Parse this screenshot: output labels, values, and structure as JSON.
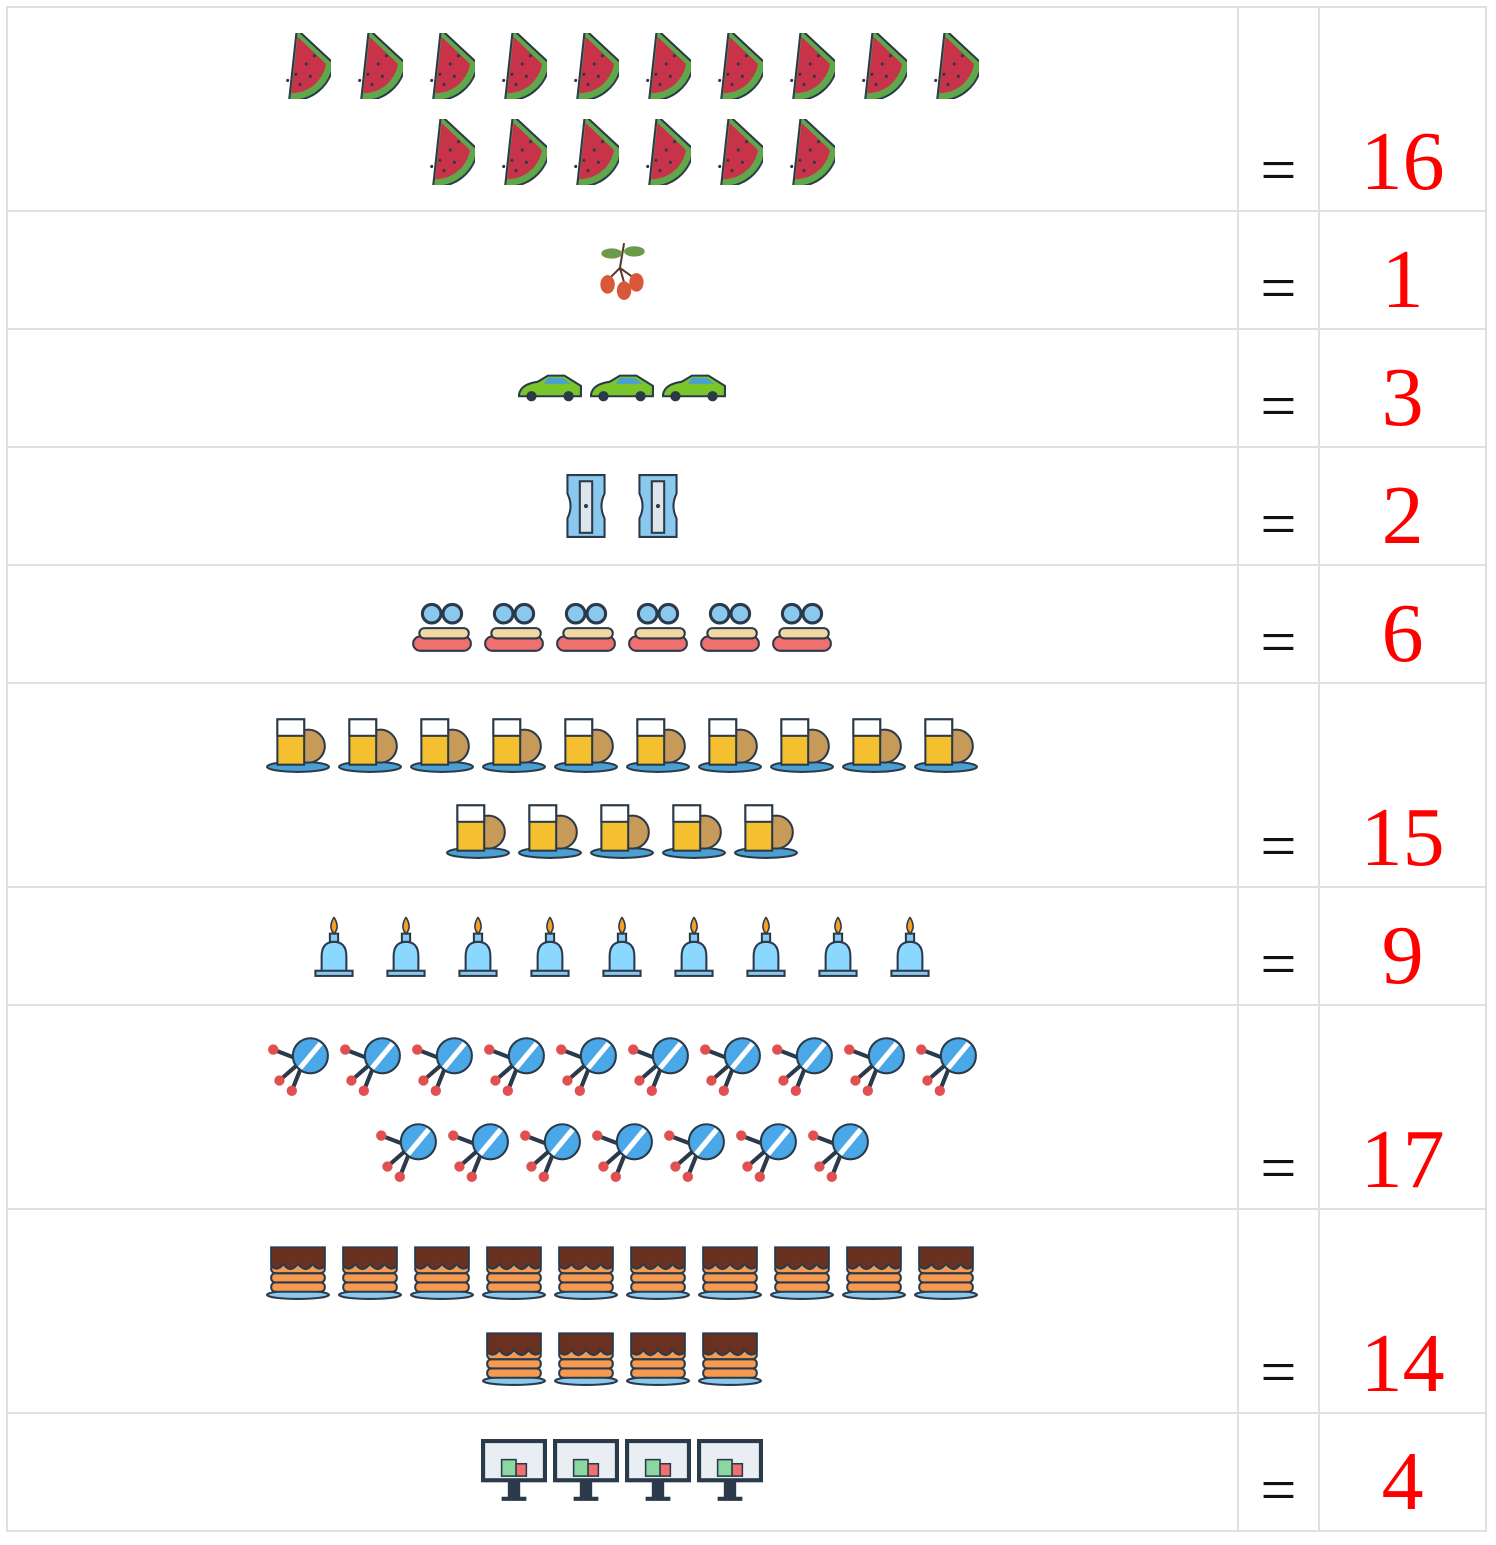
{
  "rows": [
    {
      "count": 16,
      "sign": "=",
      "answer": "16"
    },
    {
      "count": 1,
      "sign": "=",
      "answer": "1"
    },
    {
      "count": 3,
      "sign": "=",
      "answer": "3"
    },
    {
      "count": 2,
      "sign": "=",
      "answer": "2"
    },
    {
      "count": 6,
      "sign": "=",
      "answer": "6"
    },
    {
      "count": 15,
      "sign": "=",
      "answer": "15"
    },
    {
      "count": 9,
      "sign": "=",
      "answer": "9"
    },
    {
      "count": 17,
      "sign": "=",
      "answer": "17"
    },
    {
      "count": 14,
      "sign": "=",
      "answer": "14"
    },
    {
      "count": 4,
      "sign": "=",
      "answer": "4"
    }
  ]
}
